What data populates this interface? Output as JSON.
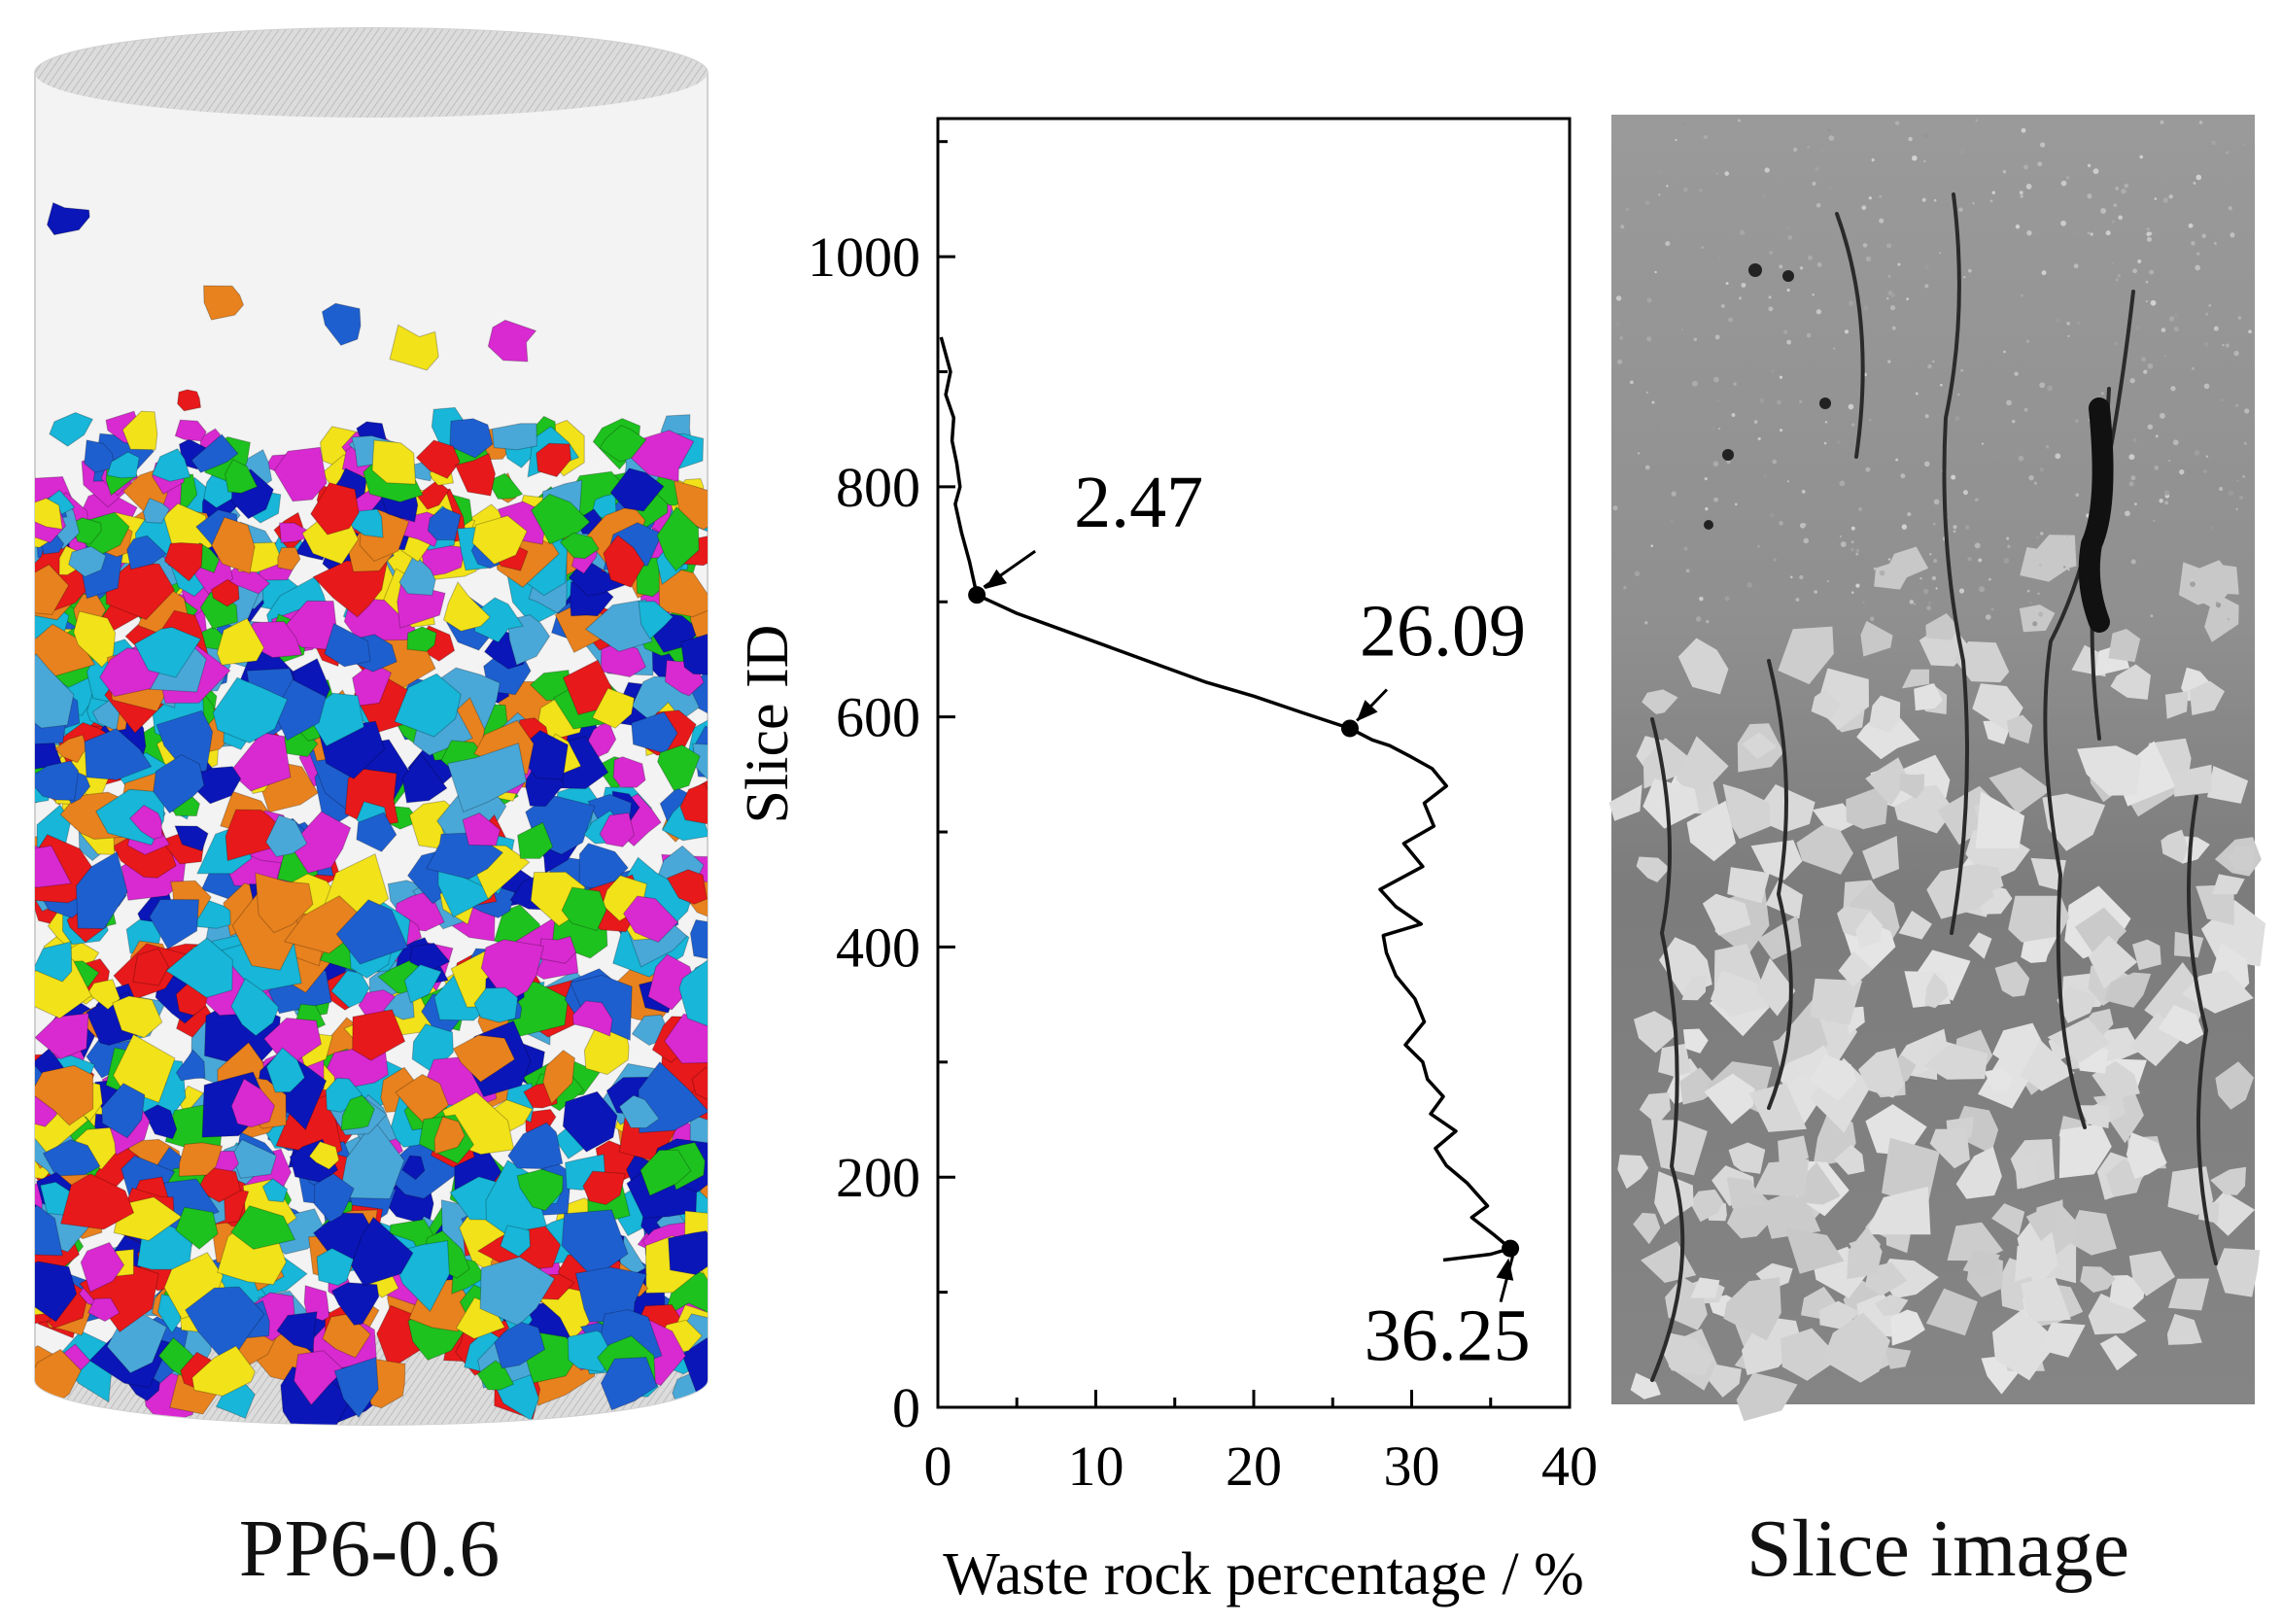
{
  "panels": {
    "left": {
      "caption": "PP6-0.6"
    },
    "right": {
      "caption": "Slice image"
    }
  },
  "colors": {
    "cylinder_shell": "#f1f1f1",
    "cylinder_top": "#d9d9d9",
    "particles": [
      "#e8191a",
      "#1e5fd0",
      "#18b6d8",
      "#f2e21a",
      "#e8821e",
      "#d92ad1",
      "#1ec21e",
      "#0a16b8",
      "#4aa8d8"
    ],
    "line": "#000000",
    "slice_paste": "#8c8c8c",
    "slice_rock": "#d6d6d6"
  },
  "chart_data": {
    "type": "line",
    "title": "",
    "xlabel": "Waste rock percentage / %",
    "ylabel": "Slice ID",
    "xlim": [
      0,
      40
    ],
    "ylim": [
      0,
      1120
    ],
    "xticks": [
      "0",
      "10",
      "20",
      "30",
      "40"
    ],
    "yticks": [
      "0",
      "200",
      "400",
      "600",
      "800",
      "1000"
    ],
    "grid": false,
    "x": [
      0.2,
      0.8,
      0.5,
      1.0,
      0.9,
      1.2,
      1.4,
      1.1,
      1.5,
      2.0,
      2.47,
      5,
      8,
      11,
      14,
      17,
      20,
      23,
      26.09,
      27.5,
      28.6,
      30.0,
      31.3,
      32.2,
      30.8,
      31.4,
      29.5,
      30.7,
      28.0,
      29.0,
      30.6,
      28.2,
      28.4,
      29.0,
      30.2,
      30.8,
      29.6,
      30.7,
      31.0,
      32.0,
      31.2,
      32.8,
      31.5,
      32.2,
      33.5,
      34.8,
      33.8,
      35.2,
      36.25,
      35.0,
      32.0
    ],
    "y": [
      930,
      900,
      880,
      860,
      840,
      820,
      800,
      785,
      760,
      735,
      706,
      690,
      675,
      660,
      645,
      630,
      618,
      604,
      590,
      580,
      575,
      565,
      555,
      540,
      525,
      505,
      490,
      470,
      450,
      435,
      420,
      410,
      395,
      375,
      355,
      335,
      315,
      300,
      285,
      270,
      255,
      240,
      225,
      210,
      195,
      175,
      165,
      150,
      138,
      133,
      128
    ],
    "annotations": [
      {
        "label": "2.47",
        "x": 2.47,
        "y": 706
      },
      {
        "label": "26.09",
        "x": 26.09,
        "y": 590
      },
      {
        "label": "36.25",
        "x": 36.25,
        "y": 138
      }
    ]
  }
}
